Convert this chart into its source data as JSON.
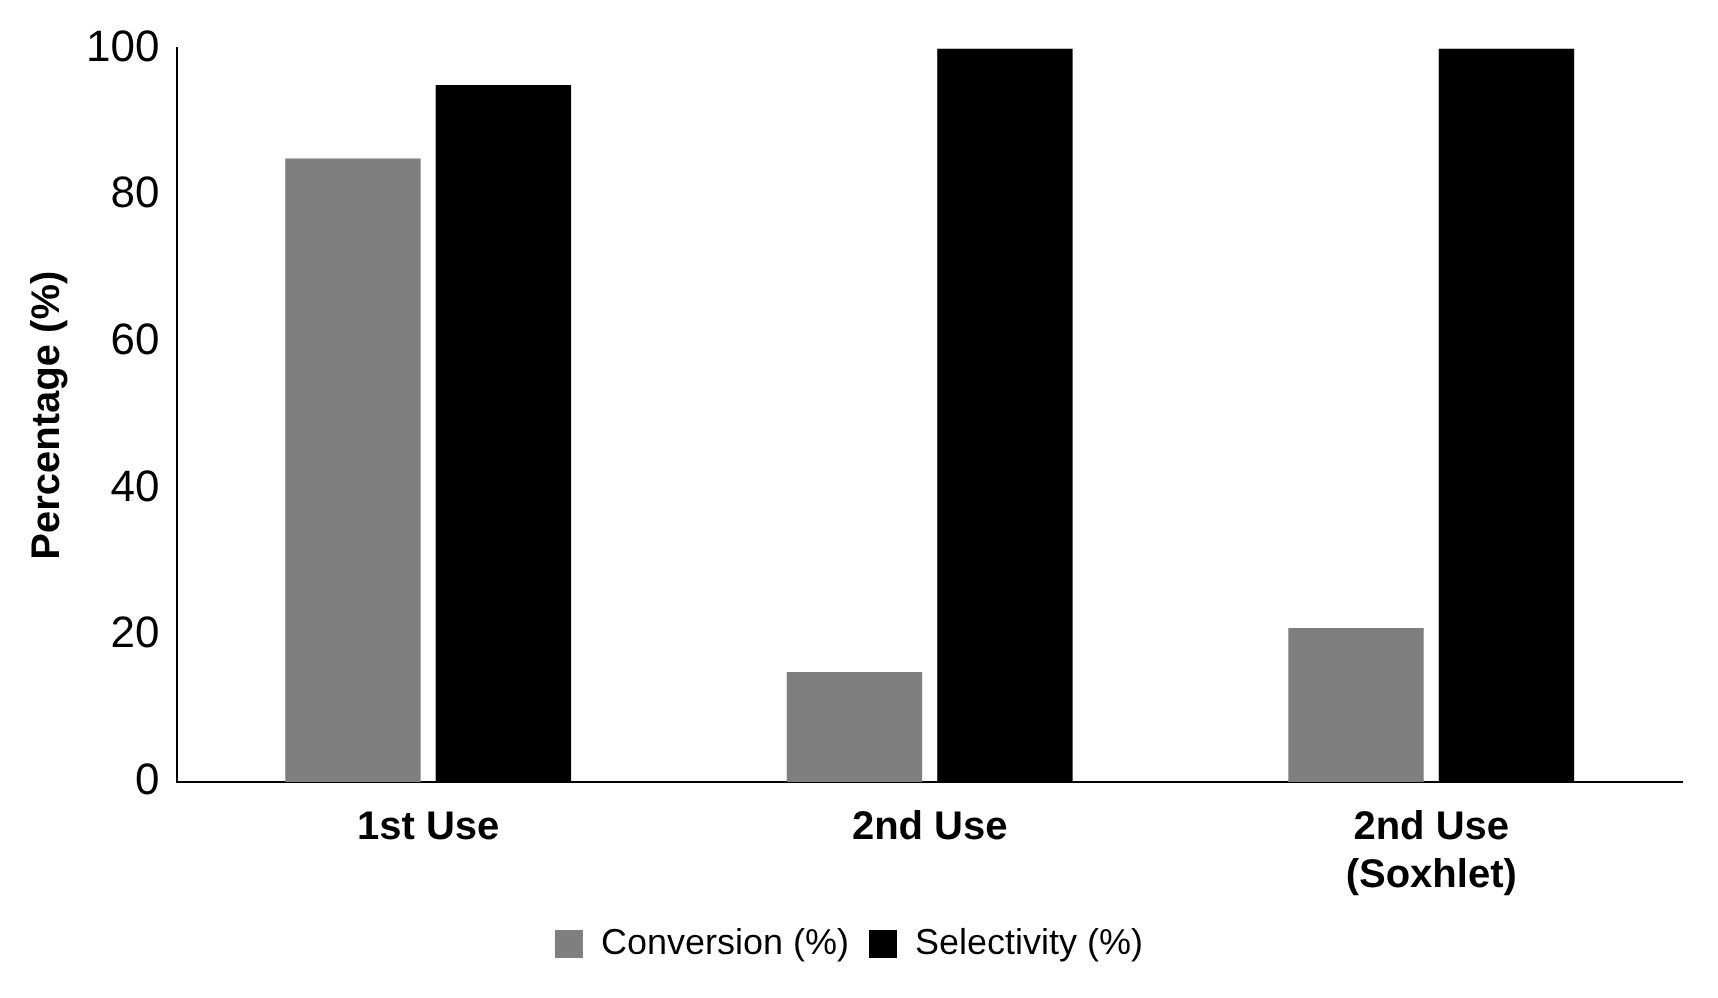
{
  "chart_data": {
    "type": "bar",
    "ylabel": "Percentage (%)",
    "categories": [
      "1st Use",
      "2nd Use",
      "2nd Use (Soxhlet)"
    ],
    "series": [
      {
        "name": "Conversion (%)",
        "color": "#7f7f7f",
        "values": [
          85,
          15,
          21
        ]
      },
      {
        "name": "Selectivity (%)",
        "color": "#000000",
        "values": [
          95,
          100,
          100
        ]
      }
    ],
    "ylim": [
      0,
      100
    ],
    "yticks": [
      0,
      20,
      40,
      60,
      80,
      100
    ],
    "grid": false,
    "legend": "bottom"
  }
}
